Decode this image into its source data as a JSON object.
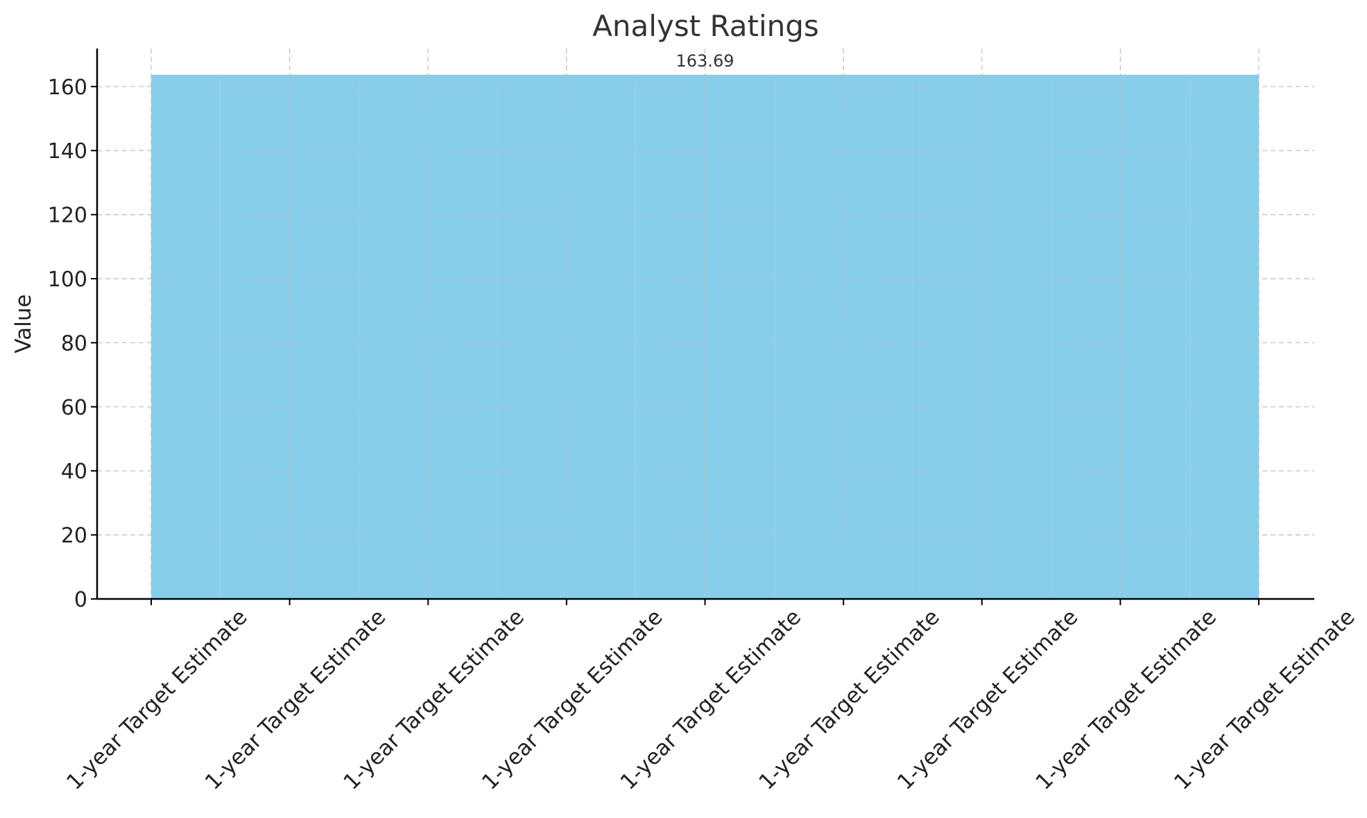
{
  "chart_data": {
    "type": "bar",
    "title": "Analyst Ratings",
    "xlabel": "",
    "ylabel": "Value",
    "categories": [
      "1-year Target Estimate",
      "1-year Target Estimate",
      "1-year Target Estimate",
      "1-year Target Estimate",
      "1-year Target Estimate",
      "1-year Target Estimate",
      "1-year Target Estimate",
      "1-year Target Estimate",
      "1-year Target Estimate"
    ],
    "values": [
      163.69,
      163.69,
      163.69,
      163.69,
      163.69,
      163.69,
      163.69,
      163.69,
      163.69
    ],
    "data_labels": [
      "163.69"
    ],
    "yticks": [
      0,
      20,
      40,
      60,
      80,
      100,
      120,
      140,
      160
    ],
    "ylim": [
      0,
      171.87
    ],
    "grid": true,
    "bar_color": "#87CEEB"
  }
}
